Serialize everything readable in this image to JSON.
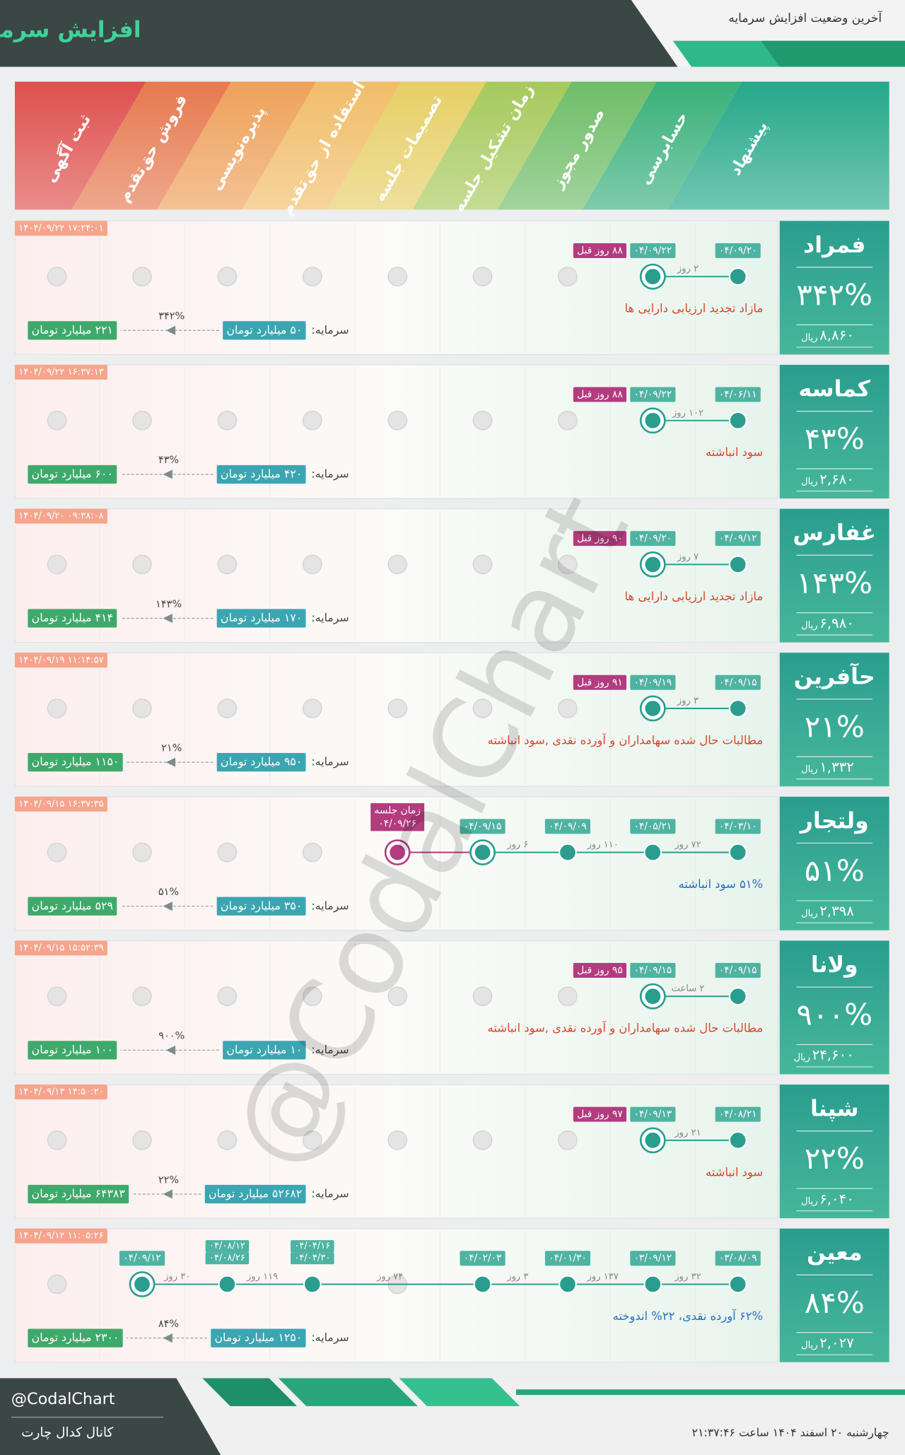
{
  "header": {
    "title": "افزایش سرمایه",
    "subtitle": "آخرین وضعیت افزایش سرمایه"
  },
  "stages": [
    "پیشنهاد",
    "حسابرسی",
    "صدور مجوز",
    "زمان تشکیل جلسه",
    "تصمیمات جلسه",
    "استفاده از حق‌تقدم",
    "پذیره‌نویسی",
    "فروش حق‌تقدم",
    "ثبت آگهی"
  ],
  "rows": [
    {
      "symbol": "فمراد",
      "change": "۳۴۲%",
      "price": "۸,۸۶۰",
      "price_unit": "ریال",
      "timestamp": "۱۴۰۴/۰۹/۲۲ ۱۷:۲۴:۰۱",
      "nodes": [
        {
          "stage": 0,
          "dates": [
            "۰۴/۰۹/۲۰"
          ]
        },
        {
          "stage": 1,
          "dates": [
            "۰۴/۰۹/۲۲"
          ]
        }
      ],
      "gaps": [
        "۲ روز"
      ],
      "badge": "۸۸ روز قبل",
      "description": "مازاد تجدید ارزیابی دارایی ها",
      "desc_color": "#d9472b",
      "capital_label": "سرمایه:",
      "capital_from": "۵۰ میلیارد تومان",
      "capital_to": "۲۲۱ میلیارد تومان",
      "capital_change": "۳۴۲%"
    },
    {
      "symbol": "کماسه",
      "change": "۴۳%",
      "price": "۲,۶۸۰",
      "price_unit": "ریال",
      "timestamp": "۱۴۰۴/۰۹/۲۲ ۱۶:۳۷:۱۳",
      "nodes": [
        {
          "stage": 0,
          "dates": [
            "۰۴/۰۶/۱۱"
          ]
        },
        {
          "stage": 1,
          "dates": [
            "۰۴/۰۹/۲۲"
          ]
        }
      ],
      "gaps": [
        "۱۰۲ روز"
      ],
      "badge": "۸۸ روز قبل",
      "description": "سود انباشته",
      "desc_color": "#d9472b",
      "capital_label": "سرمایه:",
      "capital_from": "۴۲۰ میلیارد تومان",
      "capital_to": "۶۰۰ میلیارد تومان",
      "capital_change": "۴۳%"
    },
    {
      "symbol": "غفارس",
      "change": "۱۴۳%",
      "price": "۶,۹۸۰",
      "price_unit": "ریال",
      "timestamp": "۱۴۰۴/۰۹/۲۰ ۰۹:۳۸:۰۸",
      "nodes": [
        {
          "stage": 0,
          "dates": [
            "۰۴/۰۹/۱۲"
          ]
        },
        {
          "stage": 1,
          "dates": [
            "۰۴/۰۹/۲۰"
          ]
        }
      ],
      "gaps": [
        "۷ روز"
      ],
      "badge": "۹۰ روز قبل",
      "description": "مازاد تجدید ارزیابی دارایی ها",
      "desc_color": "#d9472b",
      "capital_label": "سرمایه:",
      "capital_from": "۱۷۰ میلیارد تومان",
      "capital_to": "۴۱۴ میلیارد تومان",
      "capital_change": "۱۴۳%"
    },
    {
      "symbol": "حآفرین",
      "change": "۲۱%",
      "price": "۱,۳۳۲",
      "price_unit": "ریال",
      "timestamp": "۱۴۰۴/۰۹/۱۹ ۱۱:۱۴:۵۷",
      "nodes": [
        {
          "stage": 0,
          "dates": [
            "۰۴/۰۹/۱۵"
          ]
        },
        {
          "stage": 1,
          "dates": [
            "۰۴/۰۹/۱۹"
          ]
        }
      ],
      "gaps": [
        "۳ روز"
      ],
      "badge": "۹۱ روز قبل",
      "description": "مطالبات حال شده سهامداران و آورده نقدی ,سود انباشته",
      "desc_color": "#d9472b",
      "capital_label": "سرمایه:",
      "capital_from": "۹۵۰ میلیارد تومان",
      "capital_to": "۱۱۵۰ میلیارد تومان",
      "capital_change": "۲۱%"
    },
    {
      "symbol": "ولتجار",
      "change": "۵۱%",
      "price": "۲,۳۹۸",
      "price_unit": "ریال",
      "timestamp": "۱۴۰۴/۰۹/۱۵ ۱۶:۳۷:۳۵",
      "nodes": [
        {
          "stage": 0,
          "dates": [
            "۰۴/۰۳/۱۰"
          ]
        },
        {
          "stage": 1,
          "dates": [
            "۰۴/۰۵/۲۱"
          ]
        },
        {
          "stage": 2,
          "dates": [
            "۰۴/۰۹/۰۹"
          ]
        },
        {
          "stage": 3,
          "dates": [
            "۰۴/۰۹/۱۵"
          ]
        },
        {
          "stage": 4,
          "dates": [
            "زمان جلسه",
            "۰۴/۰۹/۲۶"
          ],
          "color": "#b23c7e"
        }
      ],
      "gaps": [
        "۷۲ روز",
        "۱۱۰ روز",
        "۶ روز"
      ],
      "description": "۵۱% سود انباشته",
      "desc_color": "#2a6fbf",
      "capital_label": "سرمایه:",
      "capital_from": "۳۵۰ میلیارد تومان",
      "capital_to": "۵۲۹ میلیارد تومان",
      "capital_change": "۵۱%"
    },
    {
      "symbol": "ولانا",
      "change": "۹۰۰%",
      "price": "۲۴,۶۰۰",
      "price_unit": "ریال",
      "timestamp": "۱۴۰۴/۰۹/۱۵ ۱۵:۵۲:۳۹",
      "nodes": [
        {
          "stage": 0,
          "dates": [
            "۰۴/۰۹/۱۵"
          ]
        },
        {
          "stage": 1,
          "dates": [
            "۰۴/۰۹/۱۵"
          ]
        }
      ],
      "gaps": [
        "۲ ساعت"
      ],
      "badge": "۹۵ روز قبل",
      "description": "مطالبات حال شده سهامداران و آورده نقدی ,سود انباشته",
      "desc_color": "#d9472b",
      "capital_label": "سرمایه:",
      "capital_from": "۱۰ میلیارد تومان",
      "capital_to": "۱۰۰ میلیارد تومان",
      "capital_change": "۹۰۰%"
    },
    {
      "symbol": "شپنا",
      "change": "۲۲%",
      "price": "۶,۰۴۰",
      "price_unit": "ریال",
      "timestamp": "۱۴۰۴/۰۹/۱۳ ۱۴:۵۰:۲۰",
      "nodes": [
        {
          "stage": 0,
          "dates": [
            "۰۴/۰۸/۲۱"
          ]
        },
        {
          "stage": 1,
          "dates": [
            "۰۴/۰۹/۱۳"
          ]
        }
      ],
      "gaps": [
        "۲۱ روز"
      ],
      "badge": "۹۷ روز قبل",
      "description": "سود انباشته",
      "desc_color": "#d9472b",
      "capital_label": "سرمایه:",
      "capital_from": "۵۲۶۸۲ میلیارد تومان",
      "capital_to": "۶۴۳۸۳ میلیارد تومان",
      "capital_change": "۲۲%"
    },
    {
      "symbol": "معین",
      "change": "۸۴%",
      "price": "۲,۰۲۷",
      "price_unit": "ریال",
      "timestamp": "۱۴۰۴/۰۹/۱۲ ۱۱:۰۵:۲۶",
      "nodes": [
        {
          "stage": 0,
          "dates": [
            "۰۳/۰۸/۰۹"
          ]
        },
        {
          "stage": 1,
          "dates": [
            "۰۳/۰۹/۱۲"
          ]
        },
        {
          "stage": 2,
          "dates": [
            "۰۴/۰۱/۳۰"
          ]
        },
        {
          "stage": 3,
          "dates": [
            "۰۴/۰۲/۰۳"
          ]
        },
        {
          "stage": 5,
          "dates": [
            "۰۴/۰۴/۱۶",
            "۰۴/۰۴/۳۰"
          ]
        },
        {
          "stage": 6,
          "dates": [
            "۰۴/۰۸/۱۲",
            "۰۴/۰۸/۲۶"
          ]
        },
        {
          "stage": 7,
          "dates": [
            "۰۴/۰۹/۱۲"
          ]
        }
      ],
      "gaps": [
        "۳۲ روز",
        "۱۳۷ روز",
        "۳ روز",
        "۷۴ روز",
        "۱۱۹ روز",
        "۳۰ روز"
      ],
      "description": "۶۲% آورده نقدی، ۲۲% اندوخته",
      "desc_color": "#2a6fbf",
      "capital_label": "سرمایه:",
      "capital_from": "۱۲۵۰ میلیارد تومان",
      "capital_to": "۲۳۰۰ میلیارد تومان",
      "capital_change": "۸۴%"
    }
  ],
  "watermark": "@CodalChart",
  "footer": {
    "handle": "@CodalChart",
    "channel": "کانال کدال چارت",
    "datetime": "چهارشنبه ۲۰ اسفند ۱۴۰۴ ساعت ۲۱:۳۷:۴۶"
  }
}
